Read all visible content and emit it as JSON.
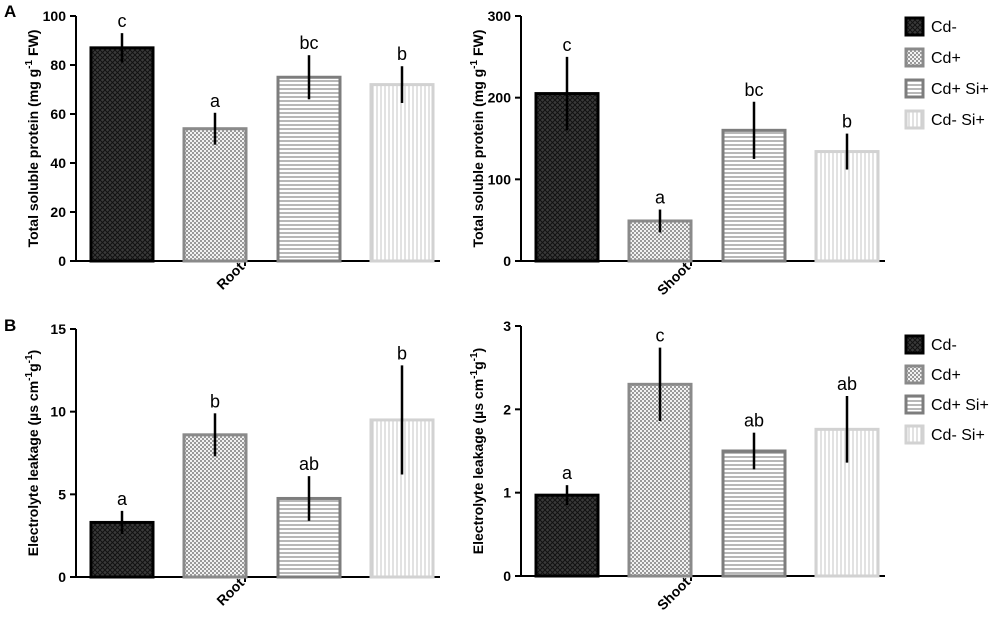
{
  "panel_labels": [
    "A",
    "B"
  ],
  "legend": [
    {
      "name": "Cd-",
      "pattern": "pat-cdminus",
      "stroke": "#000000"
    },
    {
      "name": "Cd+",
      "pattern": "pat-cdplus",
      "stroke": "#8a8a8a"
    },
    {
      "name": "Cd+ Si+",
      "pattern": "pat-cdplussi",
      "stroke": "#7d7d7d"
    },
    {
      "name": "Cd- Si+",
      "pattern": "pat-cdminussi",
      "stroke": "#d2d2d2"
    }
  ],
  "chart_data": [
    {
      "id": "A-root",
      "type": "bar",
      "panel": "A",
      "xlabel": "Root",
      "ylabel": "Total soluble protein (mg g",
      "ylabel_sup": "-1",
      "ylabel_tail": " FW)",
      "ylim": [
        0,
        100
      ],
      "yticks": [
        0,
        20,
        40,
        60,
        80,
        100
      ],
      "series": [
        {
          "name": "Cd-",
          "value": 87,
          "err": 6,
          "sig": "c"
        },
        {
          "name": "Cd+",
          "value": 54,
          "err": 6.5,
          "sig": "a"
        },
        {
          "name": "Cd+ Si+",
          "value": 75,
          "err": 9,
          "sig": "bc"
        },
        {
          "name": "Cd- Si+",
          "value": 72,
          "err": 7.5,
          "sig": "b"
        }
      ]
    },
    {
      "id": "A-shoot",
      "type": "bar",
      "panel": "A",
      "xlabel": "Shoot",
      "ylabel": "Total soluble protein (mg g",
      "ylabel_sup": "-1",
      "ylabel_tail": " FW)",
      "ylim": [
        0,
        300
      ],
      "yticks": [
        0,
        100,
        200,
        300
      ],
      "series": [
        {
          "name": "Cd-",
          "value": 205,
          "err": 45,
          "sig": "c"
        },
        {
          "name": "Cd+",
          "value": 49,
          "err": 14,
          "sig": "a"
        },
        {
          "name": "Cd+ Si+",
          "value": 160,
          "err": 35,
          "sig": "bc"
        },
        {
          "name": "Cd- Si+",
          "value": 134,
          "err": 22,
          "sig": "b"
        }
      ]
    },
    {
      "id": "B-root",
      "type": "bar",
      "panel": "B",
      "xlabel": "Root",
      "ylabel": "Electrolyte leakage (µs cm",
      "ylabel_sup": "-1",
      "ylabel_mid": "g",
      "ylabel_sup2": "-1",
      "ylabel_tail": ")",
      "ylim": [
        0,
        15
      ],
      "yticks": [
        0,
        5,
        10,
        15
      ],
      "series": [
        {
          "name": "Cd-",
          "value": 3.3,
          "err": 0.7,
          "sig": "a"
        },
        {
          "name": "Cd+",
          "value": 8.6,
          "err": 1.3,
          "sig": "b"
        },
        {
          "name": "Cd+ Si+",
          "value": 4.75,
          "err": 1.35,
          "sig": "ab"
        },
        {
          "name": "Cd- Si+",
          "value": 9.5,
          "err": 3.3,
          "sig": "b"
        }
      ]
    },
    {
      "id": "B-shoot",
      "type": "bar",
      "panel": "B",
      "xlabel": "Shoot",
      "ylabel": "Electrolyte leakage (µs cm",
      "ylabel_sup": "-1",
      "ylabel_mid": "g",
      "ylabel_sup2": "-1",
      "ylabel_tail": ")",
      "ylim": [
        0,
        3
      ],
      "yticks": [
        0,
        1,
        2,
        3
      ],
      "series": [
        {
          "name": "Cd-",
          "value": 0.97,
          "err": 0.12,
          "sig": "a"
        },
        {
          "name": "Cd+",
          "value": 2.3,
          "err": 0.44,
          "sig": "c"
        },
        {
          "name": "Cd+ Si+",
          "value": 1.5,
          "err": 0.22,
          "sig": "ab"
        },
        {
          "name": "Cd- Si+",
          "value": 1.76,
          "err": 0.4,
          "sig": "ab"
        }
      ]
    }
  ]
}
